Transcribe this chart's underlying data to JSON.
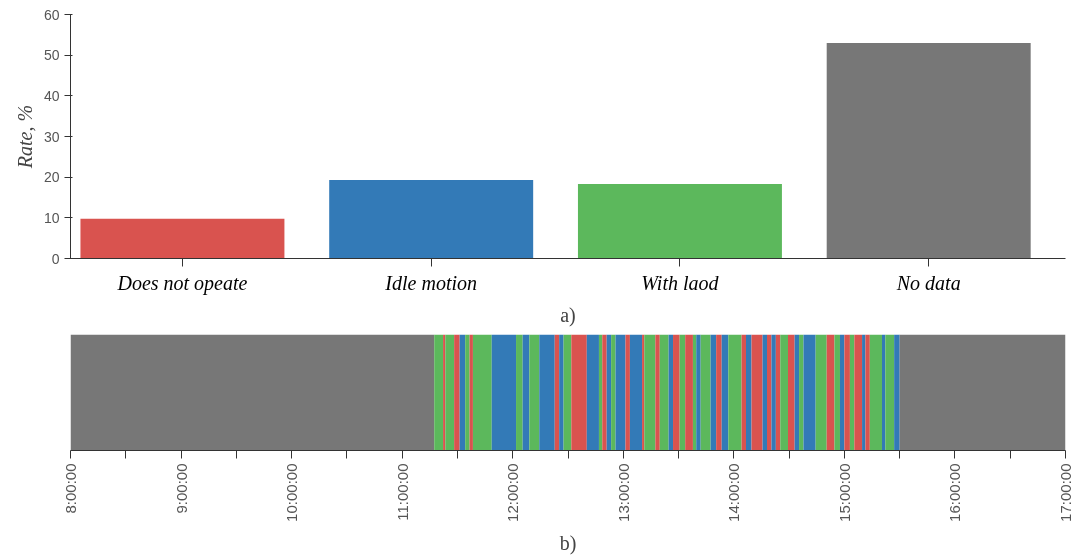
{
  "chart_data": [
    {
      "type": "bar",
      "categories": [
        "Does not opeate",
        "Idle motion",
        "With laod",
        "No data"
      ],
      "values": [
        9.8,
        19.3,
        18.3,
        53
      ],
      "colors": [
        "#d9534f",
        "#337ab7",
        "#5cb85c",
        "#777777"
      ],
      "ylabel": "Rate, %",
      "ylim": [
        0,
        60
      ],
      "yticks": [
        0,
        10,
        20,
        30,
        40,
        50,
        60
      ],
      "grid": false,
      "annotations": [
        "a)"
      ]
    },
    {
      "type": "bar",
      "orientation": "horizontal",
      "categories": [
        null
      ],
      "xlim": [
        8,
        17
      ],
      "tick_labels": "x",
      "grid": false,
      "xticks": [
        {
          "value": 8,
          "label": "8:00:00"
        },
        {
          "value": 8.5,
          "label": null
        },
        {
          "value": 9,
          "label": "9:00:00"
        },
        {
          "value": 9.5,
          "label": null
        },
        {
          "value": 10,
          "label": "10:00:00"
        },
        {
          "value": 10.5,
          "label": null
        },
        {
          "value": 11,
          "label": "11:00:00"
        },
        {
          "value": 11.5,
          "label": null
        },
        {
          "value": 12,
          "label": "12:00:00"
        },
        {
          "value": 12.5,
          "label": null
        },
        {
          "value": 13,
          "label": "13:00:00"
        },
        {
          "value": 13.5,
          "label": null
        },
        {
          "value": 14,
          "label": "14:00:00"
        },
        {
          "value": 14.5,
          "label": null
        },
        {
          "value": 15,
          "label": "15:00:00"
        },
        {
          "value": 15.5,
          "label": null
        },
        {
          "value": 16,
          "label": "16:00:00"
        },
        {
          "value": 16.5,
          "label": null
        },
        {
          "value": 17,
          "label": "17:00:00"
        }
      ],
      "annotations": [
        "b)"
      ],
      "series": [
        {
          "color": "#777777",
          "base": [
            8.0
          ],
          "values": [
            3.29
          ]
        },
        {
          "color": "#5cb85c",
          "base": [
            11.29
          ],
          "values": [
            0.08
          ]
        },
        {
          "color": "#d9534f",
          "base": [
            11.37
          ],
          "values": [
            0.02
          ]
        },
        {
          "color": "#5cb85c",
          "base": [
            11.39
          ],
          "values": [
            0.08
          ]
        },
        {
          "color": "#d9534f",
          "base": [
            11.47
          ],
          "values": [
            0.05
          ]
        },
        {
          "color": "#337ab7",
          "base": [
            11.52
          ],
          "values": [
            0.05
          ]
        },
        {
          "color": "#5cb85c",
          "base": [
            11.57
          ],
          "values": [
            0.04
          ]
        },
        {
          "color": "#d9534f",
          "base": [
            11.61
          ],
          "values": [
            0.03
          ]
        },
        {
          "color": "#5cb85c",
          "base": [
            11.64
          ],
          "values": [
            0.17
          ]
        },
        {
          "color": "#337ab7",
          "base": [
            11.81
          ],
          "values": [
            0.22
          ]
        },
        {
          "color": "#5cb85c",
          "base": [
            12.03
          ],
          "values": [
            0.06
          ]
        },
        {
          "color": "#337ab7",
          "base": [
            12.09
          ],
          "values": [
            0.06
          ]
        },
        {
          "color": "#5cb85c",
          "base": [
            12.15
          ],
          "values": [
            0.09
          ]
        },
        {
          "color": "#337ab7",
          "base": [
            12.24
          ],
          "values": [
            0.14
          ]
        },
        {
          "color": "#d9534f",
          "base": [
            12.38
          ],
          "values": [
            0.04
          ]
        },
        {
          "color": "#337ab7",
          "base": [
            12.42
          ],
          "values": [
            0.04
          ]
        },
        {
          "color": "#5cb85c",
          "base": [
            12.46
          ],
          "values": [
            0.07
          ]
        },
        {
          "color": "#d9534f",
          "base": [
            12.53
          ],
          "values": [
            0.14
          ]
        },
        {
          "color": "#337ab7",
          "base": [
            12.67
          ],
          "values": [
            0.11
          ]
        },
        {
          "color": "#5cb85c",
          "base": [
            12.78
          ],
          "values": [
            0.03
          ]
        },
        {
          "color": "#d9534f",
          "base": [
            12.81
          ],
          "values": [
            0.04
          ]
        },
        {
          "color": "#337ab7",
          "base": [
            12.85
          ],
          "values": [
            0.04
          ]
        },
        {
          "color": "#5cb85c",
          "base": [
            12.89
          ],
          "values": [
            0.04
          ]
        },
        {
          "color": "#337ab7",
          "base": [
            12.93
          ],
          "values": [
            0.09
          ]
        },
        {
          "color": "#d9534f",
          "base": [
            13.02
          ],
          "values": [
            0.04
          ]
        },
        {
          "color": "#337ab7",
          "base": [
            13.06
          ],
          "values": [
            0.11
          ]
        },
        {
          "color": "#d9534f",
          "base": [
            13.17
          ],
          "values": [
            0.02
          ]
        },
        {
          "color": "#5cb85c",
          "base": [
            13.19
          ],
          "values": [
            0.1
          ]
        },
        {
          "color": "#d9534f",
          "base": [
            13.29
          ],
          "values": [
            0.04
          ]
        },
        {
          "color": "#5cb85c",
          "base": [
            13.33
          ],
          "values": [
            0.08
          ]
        },
        {
          "color": "#337ab7",
          "base": [
            13.41
          ],
          "values": [
            0.04
          ]
        },
        {
          "color": "#d9534f",
          "base": [
            13.45
          ],
          "values": [
            0.06
          ]
        },
        {
          "color": "#5cb85c",
          "base": [
            13.51
          ],
          "values": [
            0.05
          ]
        },
        {
          "color": "#d9534f",
          "base": [
            13.56
          ],
          "values": [
            0.07
          ]
        },
        {
          "color": "#5cb85c",
          "base": [
            13.63
          ],
          "values": [
            0.03
          ]
        },
        {
          "color": "#337ab7",
          "base": [
            13.66
          ],
          "values": [
            0.04
          ]
        },
        {
          "color": "#5cb85c",
          "base": [
            13.7
          ],
          "values": [
            0.09
          ]
        },
        {
          "color": "#337ab7",
          "base": [
            13.79
          ],
          "values": [
            0.05
          ]
        },
        {
          "color": "#d9534f",
          "base": [
            13.84
          ],
          "values": [
            0.05
          ]
        },
        {
          "color": "#337ab7",
          "base": [
            13.89
          ],
          "values": [
            0.06
          ]
        },
        {
          "color": "#5cb85c",
          "base": [
            13.95
          ],
          "values": [
            0.12
          ]
        },
        {
          "color": "#d9534f",
          "base": [
            14.07
          ],
          "values": [
            0.04
          ]
        },
        {
          "color": "#337ab7",
          "base": [
            14.11
          ],
          "values": [
            0.05
          ]
        },
        {
          "color": "#d9534f",
          "base": [
            14.16
          ],
          "values": [
            0.1
          ]
        },
        {
          "color": "#337ab7",
          "base": [
            14.26
          ],
          "values": [
            0.04
          ]
        },
        {
          "color": "#d9534f",
          "base": [
            14.3
          ],
          "values": [
            0.04
          ]
        },
        {
          "color": "#337ab7",
          "base": [
            14.34
          ],
          "values": [
            0.04
          ]
        },
        {
          "color": "#d9534f",
          "base": [
            14.38
          ],
          "values": [
            0.04
          ]
        },
        {
          "color": "#5cb85c",
          "base": [
            14.42
          ],
          "values": [
            0.07
          ]
        },
        {
          "color": "#d9534f",
          "base": [
            14.49
          ],
          "values": [
            0.06
          ]
        },
        {
          "color": "#337ab7",
          "base": [
            14.55
          ],
          "values": [
            0.04
          ]
        },
        {
          "color": "#5cb85c",
          "base": [
            14.59
          ],
          "values": [
            0.04
          ]
        },
        {
          "color": "#337ab7",
          "base": [
            14.63
          ],
          "values": [
            0.11
          ]
        },
        {
          "color": "#5cb85c",
          "base": [
            14.74
          ],
          "values": [
            0.1
          ]
        },
        {
          "color": "#d9534f",
          "base": [
            14.84
          ],
          "values": [
            0.07
          ]
        },
        {
          "color": "#5cb85c",
          "base": [
            14.91
          ],
          "values": [
            0.05
          ]
        },
        {
          "color": "#337ab7",
          "base": [
            14.96
          ],
          "values": [
            0.04
          ]
        },
        {
          "color": "#d9534f",
          "base": [
            15.0
          ],
          "values": [
            0.05
          ]
        },
        {
          "color": "#5cb85c",
          "base": [
            15.05
          ],
          "values": [
            0.04
          ]
        },
        {
          "color": "#d9534f",
          "base": [
            15.09
          ],
          "values": [
            0.07
          ]
        },
        {
          "color": "#337ab7",
          "base": [
            15.16
          ],
          "values": [
            0.03
          ]
        },
        {
          "color": "#d9534f",
          "base": [
            15.19
          ],
          "values": [
            0.04
          ]
        },
        {
          "color": "#5cb85c",
          "base": [
            15.23
          ],
          "values": [
            0.11
          ]
        },
        {
          "color": "#337ab7",
          "base": [
            15.34
          ],
          "values": [
            0.03
          ]
        },
        {
          "color": "#5cb85c",
          "base": [
            15.37
          ],
          "values": [
            0.08
          ]
        },
        {
          "color": "#337ab7",
          "base": [
            15.45
          ],
          "values": [
            0.05
          ]
        },
        {
          "color": "#777777",
          "base": [
            15.5
          ],
          "values": [
            1.5
          ]
        }
      ]
    }
  ]
}
